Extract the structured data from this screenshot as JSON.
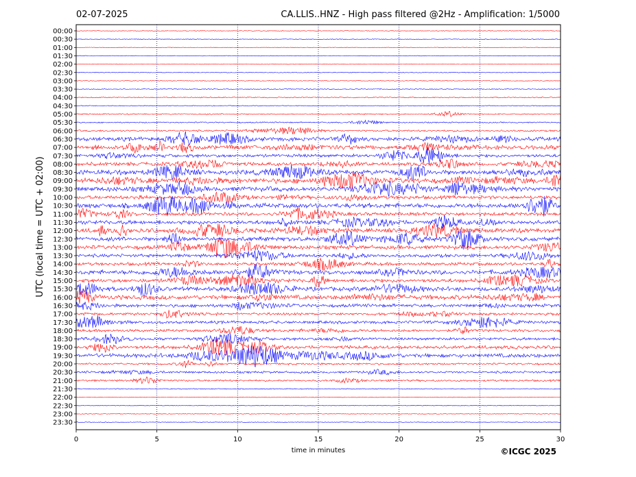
{
  "header": {
    "date": "02-07-2025",
    "title": "CA.LLIS..HNZ - High pass filtered @2Hz - Amplification: 1/5000"
  },
  "footer": {
    "copyright": "©ICGC 2025"
  },
  "colors": {
    "trace_a": "#ff0000",
    "trace_b": "#0000ff",
    "gridline": "#000080",
    "frame": "#000000"
  },
  "chart_data": {
    "type": "line",
    "title": "CA.LLIS..HNZ - High pass filtered @2Hz - Amplification: 1/5000",
    "xlabel": "time in minutes",
    "ylabel": "UTC (local time = UTC + 02:00)",
    "xlim": [
      0,
      30
    ],
    "x_ticks": [
      0,
      5,
      10,
      15,
      20,
      25,
      30
    ],
    "x_gridlines": [
      5,
      10,
      15,
      20,
      25
    ],
    "grid": "vertical dotted at x ticks",
    "row_labels": [
      "00:00",
      "00:30",
      "01:00",
      "01:30",
      "02:00",
      "02:30",
      "03:00",
      "03:30",
      "04:00",
      "04:30",
      "05:00",
      "05:30",
      "06:00",
      "06:30",
      "07:00",
      "07:30",
      "08:00",
      "08:30",
      "09:00",
      "09:30",
      "10:00",
      "10:30",
      "11:00",
      "11:30",
      "12:00",
      "12:30",
      "13:00",
      "13:30",
      "14:00",
      "14:30",
      "15:00",
      "15:30",
      "16:00",
      "16:30",
      "17:00",
      "17:30",
      "18:00",
      "18:30",
      "19:00",
      "19:30",
      "20:00",
      "20:30",
      "21:00",
      "21:30",
      "22:00",
      "22:30",
      "23:00",
      "23:30"
    ],
    "trace_colors_alternating": [
      "red",
      "blue"
    ],
    "relative_activity": [
      0.03,
      0.03,
      0.03,
      0.03,
      0.03,
      0.05,
      0.05,
      0.08,
      0.12,
      0.06,
      0.15,
      0.15,
      0.25,
      0.7,
      0.8,
      0.55,
      0.6,
      0.85,
      0.95,
      0.85,
      0.6,
      0.85,
      0.6,
      0.7,
      0.8,
      0.75,
      0.7,
      0.55,
      0.55,
      0.8,
      0.65,
      0.7,
      0.8,
      0.55,
      0.45,
      0.5,
      0.45,
      0.45,
      0.6,
      0.7,
      0.3,
      0.35,
      0.3,
      0.1,
      0.03,
      0.03,
      0.03,
      0.03
    ]
  }
}
